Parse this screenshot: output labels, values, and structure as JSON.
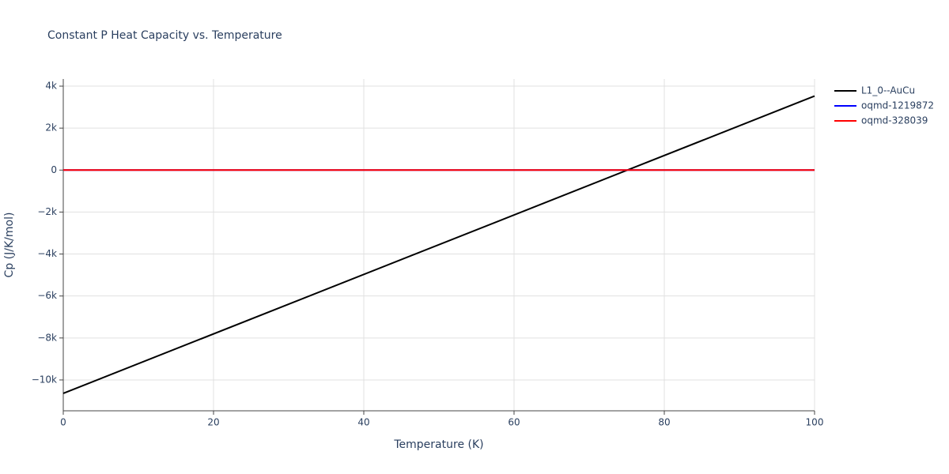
{
  "chart_data": {
    "type": "line",
    "title": "Constant P Heat Capacity vs. Temperature",
    "x_label": "Temperature (K)",
    "y_label": "Cp (J/K/mol)",
    "x": [
      0,
      100
    ],
    "series": [
      {
        "name": "L1_0--AuCu",
        "color": "#000000",
        "values": [
          -10640,
          3530
        ]
      },
      {
        "name": "oqmd-1219872",
        "color": "#0000ff",
        "values": [
          0,
          0
        ]
      },
      {
        "name": "oqmd-328039",
        "color": "#ff0000",
        "values": [
          0,
          0
        ]
      }
    ],
    "xlim": [
      0,
      100
    ],
    "xticks": [
      0,
      20,
      40,
      60,
      80,
      100
    ],
    "ylim": [
      -11470,
      4340
    ],
    "yticks": [
      {
        "value": -10000,
        "label": "−10k"
      },
      {
        "value": -8000,
        "label": "−8k"
      },
      {
        "value": -6000,
        "label": "−6k"
      },
      {
        "value": -4000,
        "label": "−4k"
      },
      {
        "value": -2000,
        "label": "−2k"
      },
      0,
      {
        "value": 2000,
        "label": "2k"
      },
      {
        "value": 4000,
        "label": "4k"
      }
    ],
    "grid": true,
    "legend": "right"
  }
}
